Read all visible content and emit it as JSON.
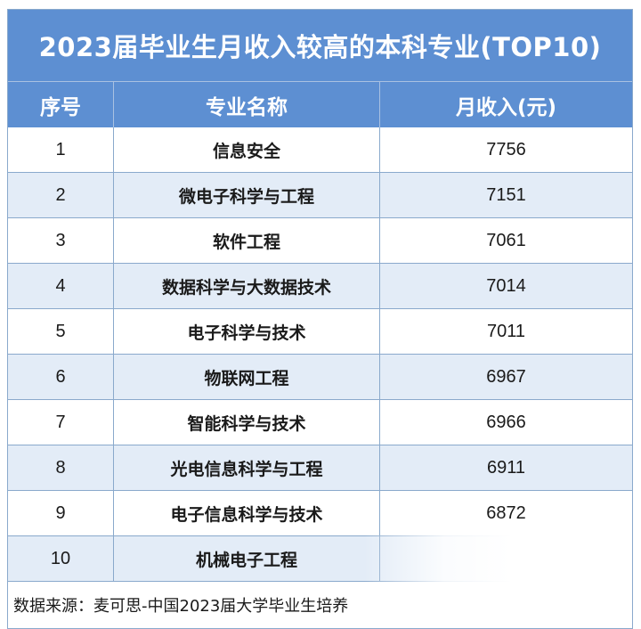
{
  "title": "2023届毕业生月收入较高的本科专业(TOP10)",
  "headers": {
    "rank": "序号",
    "major": "专业名称",
    "income": "月收入(元)"
  },
  "rows": [
    {
      "rank": "1",
      "major": "信息安全",
      "income": "7756"
    },
    {
      "rank": "2",
      "major": "微电子科学与工程",
      "income": "7151"
    },
    {
      "rank": "3",
      "major": "软件工程",
      "income": "7061"
    },
    {
      "rank": "4",
      "major": "数据科学与大数据技术",
      "income": "7014"
    },
    {
      "rank": "5",
      "major": "电子科学与技术",
      "income": "7011"
    },
    {
      "rank": "6",
      "major": "物联网工程",
      "income": "6967"
    },
    {
      "rank": "7",
      "major": "智能科学与技术",
      "income": "6966"
    },
    {
      "rank": "8",
      "major": "光电信息科学与工程",
      "income": "6911"
    },
    {
      "rank": "9",
      "major": "电子信息科学与技术",
      "income": "6872"
    },
    {
      "rank": "10",
      "major": "机械电子工程",
      "income": ""
    }
  ],
  "footer": "数据来源：麦可思-中国2023届大学毕业生培养",
  "colors": {
    "header_bg": "#5d8fd2",
    "alt_row_bg": "#e3ecf7",
    "border": "#8aa9cc"
  }
}
